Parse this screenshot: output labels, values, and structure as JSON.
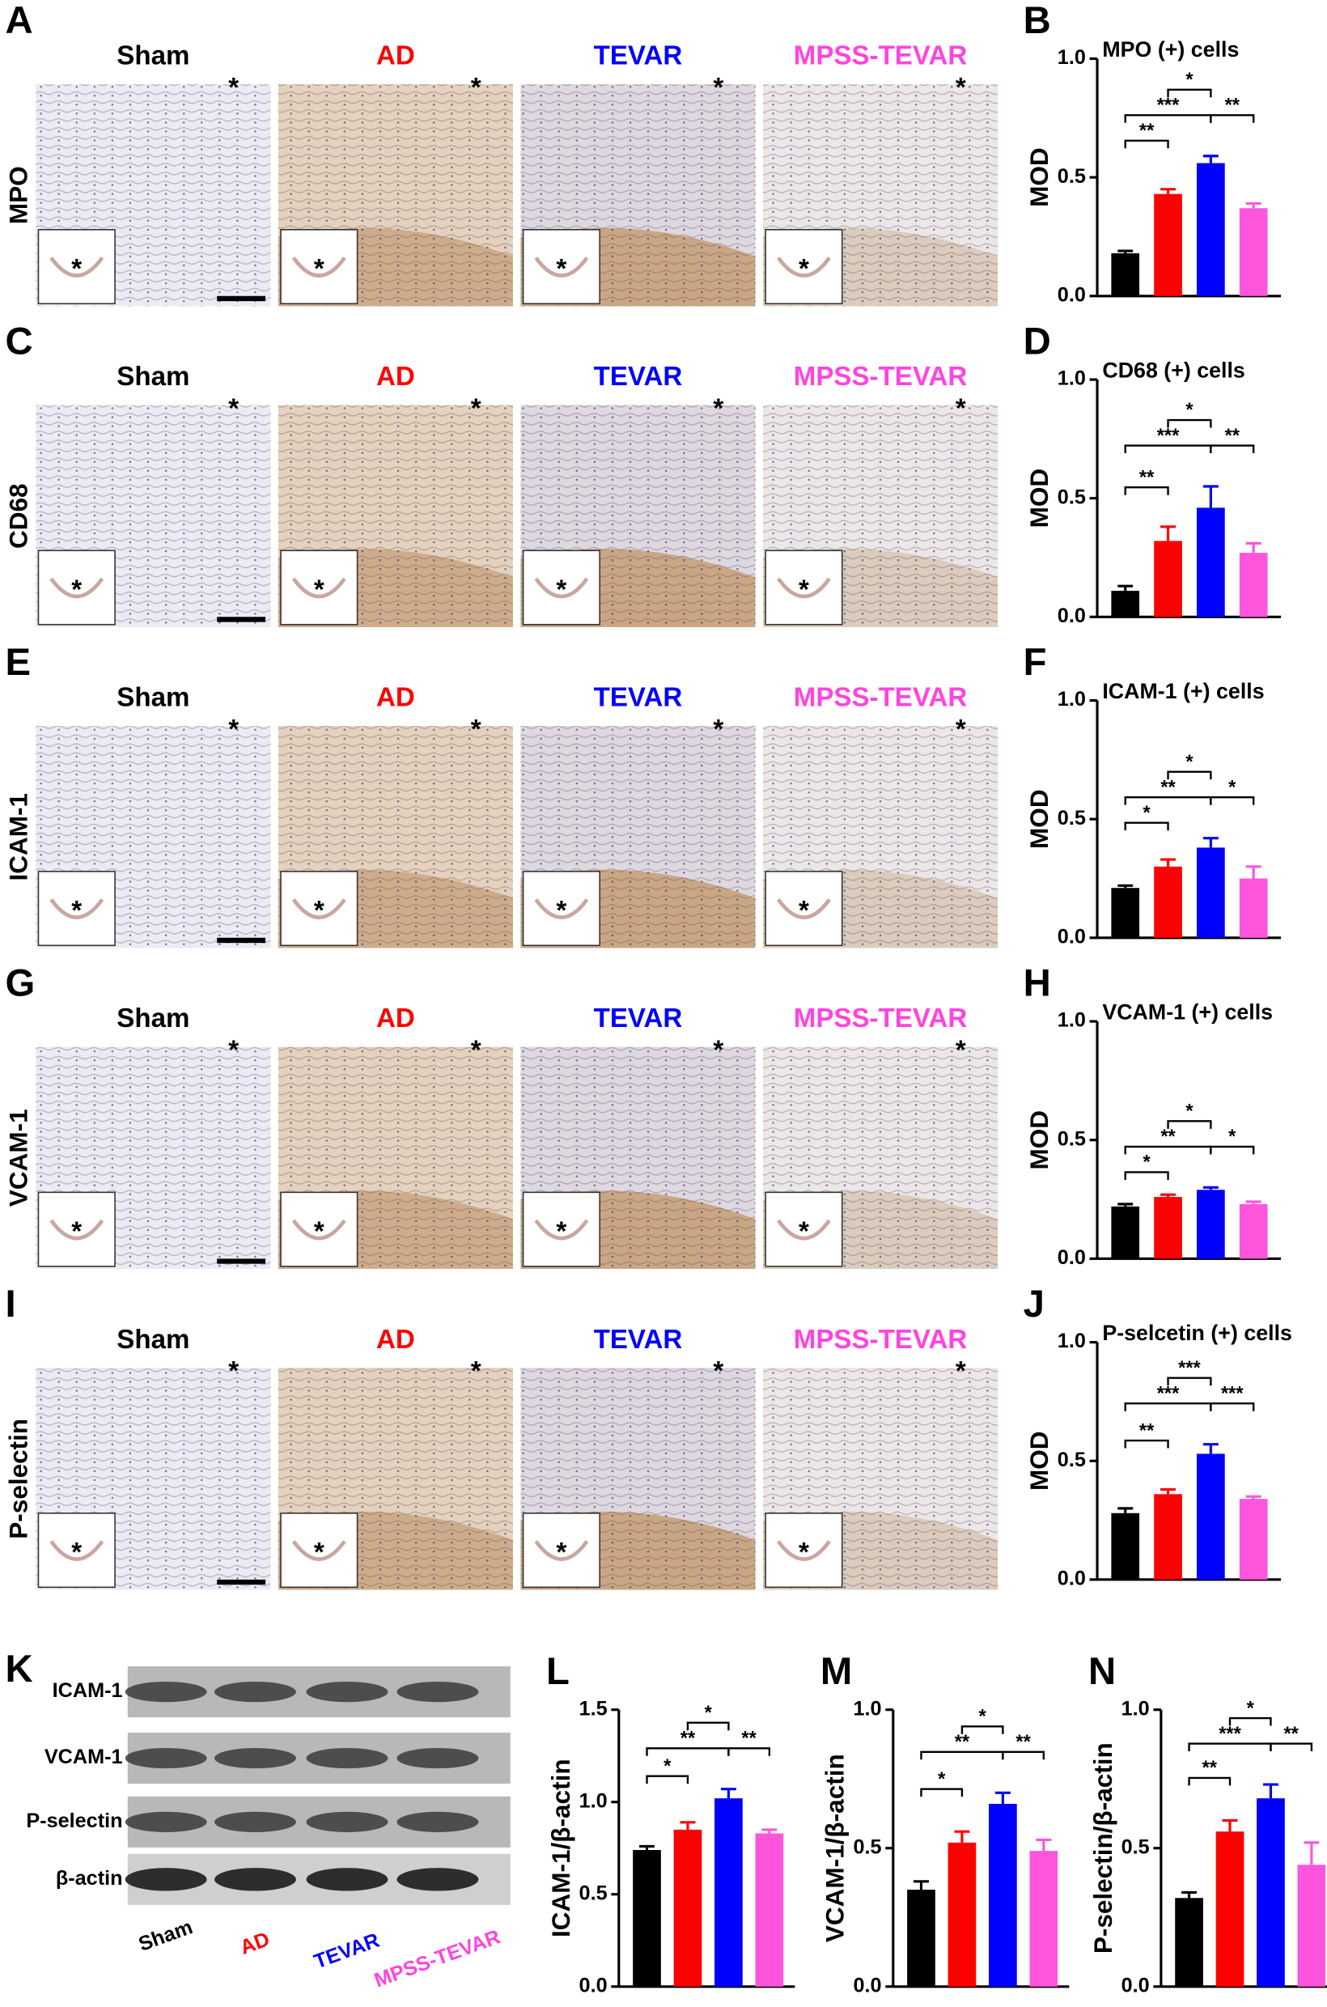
{
  "histology": {
    "groups": [
      "Sham",
      "AD",
      "TEVAR",
      "MPSS-TEVAR"
    ],
    "group_colors": [
      "#000000",
      "#ff0000",
      "#0000ff",
      "#ff44dd"
    ],
    "marker": "*",
    "rows": [
      {
        "letter": "A",
        "stain": "MPO"
      },
      {
        "letter": "C",
        "stain": "CD68"
      },
      {
        "letter": "E",
        "stain": "ICAM-1"
      },
      {
        "letter": "G",
        "stain": "VCAM-1"
      },
      {
        "letter": "I",
        "stain": "P-selectin"
      }
    ]
  },
  "western": {
    "letter": "K",
    "bands": [
      "ICAM-1",
      "VCAM-1",
      "P-selectin",
      "β-actin"
    ]
  },
  "chart_data": [
    {
      "type": "bar",
      "letter": "B",
      "title": "MPO (+) cells",
      "ylabel": "MOD",
      "categories": [
        null,
        null,
        null,
        null
      ],
      "values": [
        0.18,
        0.43,
        0.56,
        0.37
      ],
      "errors": [
        0.01,
        0.02,
        0.03,
        0.02
      ],
      "colors": [
        "#000000",
        "#ff0000",
        "#0000ff",
        "#ff55dd"
      ],
      "ylim": [
        0,
        1
      ],
      "yticks": [
        {
          "value": 0,
          "label": "0.0"
        },
        {
          "value": 0.5,
          "label": "0.5"
        },
        {
          "value": 1,
          "label": "1.0"
        }
      ],
      "comparisons": [
        {
          "groups": [
            0,
            1
          ],
          "label": "**"
        },
        {
          "groups": [
            0,
            2
          ],
          "label": "***"
        },
        {
          "groups": [
            1,
            2
          ],
          "label": "*"
        },
        {
          "groups": [
            2,
            3
          ],
          "label": "**"
        }
      ]
    },
    {
      "type": "bar",
      "letter": "D",
      "title": "CD68 (+) cells",
      "ylabel": "MOD",
      "categories": [
        null,
        null,
        null,
        null
      ],
      "values": [
        0.11,
        0.32,
        0.46,
        0.27
      ],
      "errors": [
        0.02,
        0.06,
        0.09,
        0.04
      ],
      "colors": [
        "#000000",
        "#ff0000",
        "#0000ff",
        "#ff55dd"
      ],
      "ylim": [
        0,
        1
      ],
      "yticks": [
        {
          "value": 0,
          "label": "0.0"
        },
        {
          "value": 0.5,
          "label": "0.5"
        },
        {
          "value": 1,
          "label": "1.0"
        }
      ],
      "comparisons": [
        {
          "groups": [
            0,
            1
          ],
          "label": "**"
        },
        {
          "groups": [
            0,
            2
          ],
          "label": "***"
        },
        {
          "groups": [
            1,
            2
          ],
          "label": "*"
        },
        {
          "groups": [
            2,
            3
          ],
          "label": "**"
        }
      ]
    },
    {
      "type": "bar",
      "letter": "F",
      "title": "ICAM-1 (+) cells",
      "ylabel": "MOD",
      "categories": [
        null,
        null,
        null,
        null
      ],
      "values": [
        0.21,
        0.3,
        0.38,
        0.25
      ],
      "errors": [
        0.01,
        0.03,
        0.04,
        0.05
      ],
      "colors": [
        "#000000",
        "#ff0000",
        "#0000ff",
        "#ff55dd"
      ],
      "ylim": [
        0,
        1
      ],
      "yticks": [
        {
          "value": 0,
          "label": "0.0"
        },
        {
          "value": 0.5,
          "label": "0.5"
        },
        {
          "value": 1,
          "label": "1.0"
        }
      ],
      "comparisons": [
        {
          "groups": [
            0,
            1
          ],
          "label": "*"
        },
        {
          "groups": [
            0,
            2
          ],
          "label": "**"
        },
        {
          "groups": [
            1,
            2
          ],
          "label": "*"
        },
        {
          "groups": [
            2,
            3
          ],
          "label": "*"
        }
      ]
    },
    {
      "type": "bar",
      "letter": "H",
      "title": "VCAM-1 (+) cells",
      "ylabel": "MOD",
      "categories": [
        null,
        null,
        null,
        null
      ],
      "values": [
        0.22,
        0.26,
        0.29,
        0.23
      ],
      "errors": [
        0.01,
        0.01,
        0.01,
        0.01
      ],
      "colors": [
        "#000000",
        "#ff0000",
        "#0000ff",
        "#ff55dd"
      ],
      "ylim": [
        0,
        1
      ],
      "yticks": [
        {
          "value": 0,
          "label": "0.0"
        },
        {
          "value": 0.5,
          "label": "0.5"
        },
        {
          "value": 1,
          "label": "1.0"
        }
      ],
      "comparisons": [
        {
          "groups": [
            0,
            1
          ],
          "label": "*"
        },
        {
          "groups": [
            0,
            2
          ],
          "label": "**"
        },
        {
          "groups": [
            1,
            2
          ],
          "label": "*"
        },
        {
          "groups": [
            2,
            3
          ],
          "label": "*"
        }
      ]
    },
    {
      "type": "bar",
      "letter": "J",
      "title": "P-selcetin (+) cells",
      "ylabel": "MOD",
      "categories": [
        null,
        null,
        null,
        null
      ],
      "values": [
        0.28,
        0.36,
        0.53,
        0.34
      ],
      "errors": [
        0.02,
        0.02,
        0.04,
        0.01
      ],
      "colors": [
        "#000000",
        "#ff0000",
        "#0000ff",
        "#ff55dd"
      ],
      "ylim": [
        0,
        1
      ],
      "yticks": [
        {
          "value": 0,
          "label": "0.0"
        },
        {
          "value": 0.5,
          "label": "0.5"
        },
        {
          "value": 1,
          "label": "1.0"
        }
      ],
      "comparisons": [
        {
          "groups": [
            0,
            1
          ],
          "label": "**"
        },
        {
          "groups": [
            0,
            2
          ],
          "label": "***"
        },
        {
          "groups": [
            1,
            2
          ],
          "label": "***"
        },
        {
          "groups": [
            2,
            3
          ],
          "label": "***"
        }
      ]
    },
    {
      "type": "bar",
      "letter": "L",
      "ylabel": "ICAM-1/β-actin",
      "categories": [
        null,
        null,
        null,
        null
      ],
      "values": [
        0.74,
        0.85,
        1.02,
        0.83
      ],
      "errors": [
        0.02,
        0.04,
        0.05,
        0.02
      ],
      "colors": [
        "#000000",
        "#ff0000",
        "#0000ff",
        "#ff55dd"
      ],
      "ylim": [
        0,
        1.5
      ],
      "yticks": [
        {
          "value": 0,
          "label": "0.0"
        },
        {
          "value": 0.5,
          "label": "0.5"
        },
        {
          "value": 1,
          "label": "1.0"
        },
        {
          "value": 1.5,
          "label": "1.5"
        }
      ],
      "comparisons": [
        {
          "groups": [
            0,
            1
          ],
          "label": "*"
        },
        {
          "groups": [
            0,
            2
          ],
          "label": "**"
        },
        {
          "groups": [
            1,
            2
          ],
          "label": "*"
        },
        {
          "groups": [
            2,
            3
          ],
          "label": "**"
        }
      ]
    },
    {
      "type": "bar",
      "letter": "M",
      "ylabel": "VCAM-1/β-actin",
      "categories": [
        null,
        null,
        null,
        null
      ],
      "values": [
        0.35,
        0.52,
        0.66,
        0.49
      ],
      "errors": [
        0.03,
        0.04,
        0.04,
        0.04
      ],
      "colors": [
        "#000000",
        "#ff0000",
        "#0000ff",
        "#ff55dd"
      ],
      "ylim": [
        0,
        1
      ],
      "yticks": [
        {
          "value": 0,
          "label": "0.0"
        },
        {
          "value": 0.5,
          "label": "0.5"
        },
        {
          "value": 1,
          "label": "1.0"
        }
      ],
      "comparisons": [
        {
          "groups": [
            0,
            1
          ],
          "label": "*"
        },
        {
          "groups": [
            0,
            2
          ],
          "label": "**"
        },
        {
          "groups": [
            1,
            2
          ],
          "label": "*"
        },
        {
          "groups": [
            2,
            3
          ],
          "label": "**"
        }
      ]
    },
    {
      "type": "bar",
      "letter": "N",
      "ylabel": "P-selectin/β-actin",
      "categories": [
        null,
        null,
        null,
        null
      ],
      "values": [
        0.32,
        0.56,
        0.68,
        0.44
      ],
      "errors": [
        0.02,
        0.04,
        0.05,
        0.08
      ],
      "colors": [
        "#000000",
        "#ff0000",
        "#0000ff",
        "#ff55dd"
      ],
      "ylim": [
        0,
        1
      ],
      "yticks": [
        {
          "value": 0,
          "label": "0.0"
        },
        {
          "value": 0.5,
          "label": "0.5"
        },
        {
          "value": 1,
          "label": "1.0"
        }
      ],
      "comparisons": [
        {
          "groups": [
            0,
            1
          ],
          "label": "**"
        },
        {
          "groups": [
            0,
            2
          ],
          "label": "***"
        },
        {
          "groups": [
            1,
            2
          ],
          "label": "*"
        },
        {
          "groups": [
            2,
            3
          ],
          "label": "**"
        }
      ]
    }
  ]
}
